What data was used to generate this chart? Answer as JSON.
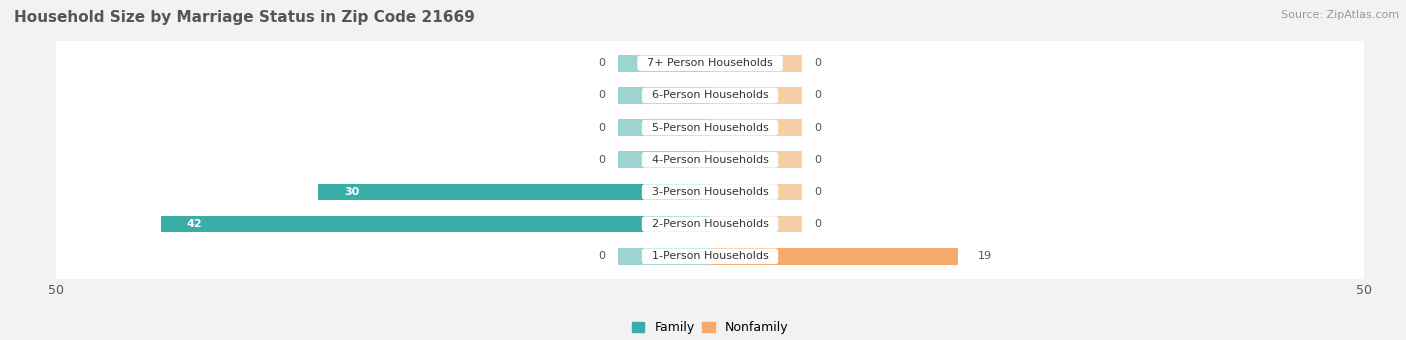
{
  "title": "Household Size by Marriage Status in Zip Code 21669",
  "source": "Source: ZipAtlas.com",
  "categories": [
    "7+ Person Households",
    "6-Person Households",
    "5-Person Households",
    "4-Person Households",
    "3-Person Households",
    "2-Person Households",
    "1-Person Households"
  ],
  "family_values": [
    0,
    0,
    0,
    0,
    30,
    42,
    0
  ],
  "nonfamily_values": [
    0,
    0,
    0,
    0,
    0,
    0,
    19
  ],
  "family_color": "#3aada8",
  "nonfamily_color": "#f5aa6b",
  "family_color_light": "#9dd4d2",
  "nonfamily_color_light": "#f7cfa4",
  "xlim": 50,
  "bar_height": 0.52,
  "bg_color": "#f2f2f2",
  "stub_size": 7
}
